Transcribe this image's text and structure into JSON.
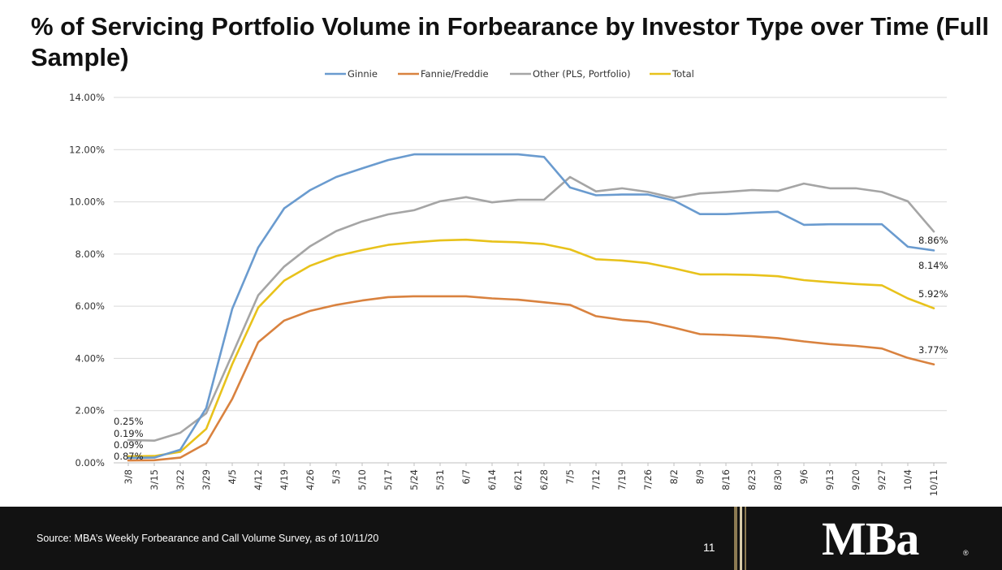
{
  "slide": {
    "title": "% of Servicing Portfolio Volume in Forbearance by Investor Type over Time (Full Sample)",
    "source": "Source: MBA’s Weekly Forbearance and Call Volume Survey, as of 10/11/20",
    "page_number": "11",
    "logo_text": "MBa",
    "logo_mark": "®"
  },
  "colors": {
    "ginnie": "#6A9BCF",
    "fannie_freddie": "#D9823F",
    "other": "#A5A5A5",
    "total": "#E8C21B",
    "gridline": "#D9D9D9",
    "footer_bg": "#121212",
    "stripe_gold": "#8C7A52"
  },
  "chart_data": {
    "type": "line",
    "title": "",
    "xlabel": "",
    "ylabel": "",
    "ylim": [
      0,
      14
    ],
    "y_ticks": [
      "0.00%",
      "2.00%",
      "4.00%",
      "6.00%",
      "8.00%",
      "10.00%",
      "12.00%",
      "14.00%"
    ],
    "grid": true,
    "legend_position": "top",
    "categories": [
      "3/8",
      "3/15",
      "3/22",
      "3/29",
      "4/5",
      "4/12",
      "4/19",
      "4/26",
      "5/3",
      "5/10",
      "5/17",
      "5/24",
      "5/31",
      "6/7",
      "6/14",
      "6/21",
      "6/28",
      "7/5",
      "7/12",
      "7/19",
      "7/26",
      "8/2",
      "8/9",
      "8/16",
      "8/23",
      "8/30",
      "9/6",
      "9/13",
      "9/20",
      "9/27",
      "10/4",
      "10/11"
    ],
    "series": [
      {
        "name": "Ginnie",
        "color_key": "ginnie",
        "values": [
          0.19,
          0.2,
          0.5,
          2.1,
          5.9,
          8.25,
          9.75,
          10.45,
          10.95,
          11.28,
          11.6,
          11.82,
          11.82,
          11.82,
          11.82,
          11.82,
          11.72,
          10.55,
          10.25,
          10.28,
          10.28,
          10.05,
          9.53,
          9.53,
          9.58,
          9.62,
          9.12,
          9.14,
          9.14,
          9.14,
          8.28,
          8.14
        ]
      },
      {
        "name": "Fannie/Freddie",
        "color_key": "fannie_freddie",
        "values": [
          0.09,
          0.1,
          0.2,
          0.75,
          2.45,
          4.62,
          5.45,
          5.82,
          6.05,
          6.22,
          6.35,
          6.38,
          6.38,
          6.38,
          6.3,
          6.25,
          6.15,
          6.05,
          5.62,
          5.48,
          5.4,
          5.18,
          4.93,
          4.9,
          4.85,
          4.78,
          4.65,
          4.55,
          4.48,
          4.38,
          4.02,
          3.77
        ]
      },
      {
        "name": "Other (PLS, Portfolio)",
        "color_key": "other",
        "values": [
          0.87,
          0.85,
          1.15,
          1.9,
          4.15,
          6.42,
          7.52,
          8.3,
          8.88,
          9.25,
          9.52,
          9.68,
          10.02,
          10.18,
          9.98,
          10.08,
          10.08,
          10.95,
          10.4,
          10.52,
          10.38,
          10.15,
          10.32,
          10.38,
          10.45,
          10.42,
          10.7,
          10.52,
          10.52,
          10.38,
          10.02,
          8.86
        ]
      },
      {
        "name": "Total",
        "color_key": "total",
        "values": [
          0.25,
          0.26,
          0.42,
          1.3,
          3.78,
          5.95,
          6.98,
          7.55,
          7.92,
          8.15,
          8.35,
          8.45,
          8.52,
          8.55,
          8.48,
          8.45,
          8.38,
          8.18,
          7.8,
          7.75,
          7.65,
          7.45,
          7.22,
          7.22,
          7.2,
          7.15,
          7.0,
          6.92,
          6.85,
          6.8,
          6.3,
          5.92
        ]
      }
    ],
    "start_labels": [
      "0.25%",
      "0.19%",
      "0.09%",
      "0.87%"
    ],
    "end_labels": [
      {
        "series": "Other (PLS, Portfolio)",
        "text": "8.86%"
      },
      {
        "series": "Ginnie",
        "text": "8.14%"
      },
      {
        "series": "Total",
        "text": "5.92%"
      },
      {
        "series": "Fannie/Freddie",
        "text": "3.77%"
      }
    ]
  }
}
